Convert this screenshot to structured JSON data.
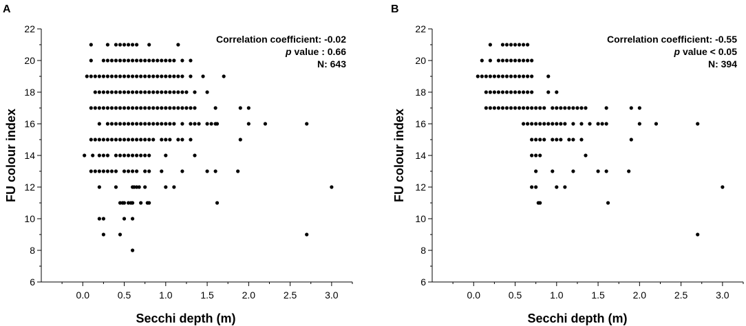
{
  "chart_data": [
    {
      "panel": "A",
      "type": "scatter",
      "xlabel": "Secchi depth (m)",
      "ylabel": "FU colour index",
      "xlim": [
        -0.5,
        3.25
      ],
      "ylim": [
        6,
        22
      ],
      "xticks": [
        "0.0",
        "0.5",
        "1.0",
        "1.5",
        "2.0",
        "2.5",
        "3.0"
      ],
      "xtick_values": [
        0,
        0.5,
        1,
        1.5,
        2,
        2.5,
        3
      ],
      "yticks": [
        "6",
        "8",
        "10",
        "12",
        "14",
        "16",
        "18",
        "20",
        "22"
      ],
      "ytick_values": [
        6,
        8,
        10,
        12,
        14,
        16,
        18,
        20,
        22
      ],
      "annotation": {
        "corr_label": "Correlation coefficient: -0.02",
        "p_prefix": "p",
        "p_rest": " value : 0.66",
        "n_label": "N: 643"
      },
      "series": [
        {
          "y": 21,
          "x": [
            0.1,
            0.3,
            0.4,
            0.45,
            0.5,
            0.55,
            0.6,
            0.65,
            0.8,
            1.15
          ]
        },
        {
          "y": 20,
          "x": [
            0.1,
            0.25,
            0.3,
            0.35,
            0.4,
            0.45,
            0.5,
            0.55,
            0.6,
            0.65,
            0.7,
            0.75,
            0.8,
            0.85,
            0.9,
            0.95,
            1.0,
            1.05,
            1.1,
            1.2,
            1.3
          ]
        },
        {
          "y": 19,
          "x": [
            0.05,
            0.1,
            0.15,
            0.2,
            0.25,
            0.3,
            0.35,
            0.4,
            0.45,
            0.5,
            0.55,
            0.6,
            0.65,
            0.7,
            0.75,
            0.8,
            0.85,
            0.9,
            0.95,
            1.0,
            1.05,
            1.1,
            1.15,
            1.2,
            1.3,
            1.45,
            1.7
          ]
        },
        {
          "y": 18,
          "x": [
            0.15,
            0.2,
            0.25,
            0.3,
            0.35,
            0.4,
            0.45,
            0.5,
            0.55,
            0.6,
            0.65,
            0.7,
            0.75,
            0.8,
            0.85,
            0.9,
            0.95,
            1.0,
            1.05,
            1.1,
            1.15,
            1.2,
            1.25,
            1.35,
            1.5
          ]
        },
        {
          "y": 17,
          "x": [
            0.1,
            0.15,
            0.2,
            0.25,
            0.3,
            0.35,
            0.4,
            0.45,
            0.5,
            0.55,
            0.6,
            0.65,
            0.7,
            0.75,
            0.8,
            0.85,
            0.9,
            0.95,
            1.0,
            1.05,
            1.1,
            1.15,
            1.2,
            1.25,
            1.3,
            1.35,
            1.6,
            1.9,
            2.0
          ]
        },
        {
          "y": 16,
          "x": [
            0.2,
            0.3,
            0.35,
            0.4,
            0.45,
            0.5,
            0.55,
            0.6,
            0.65,
            0.7,
            0.75,
            0.8,
            0.85,
            0.9,
            0.95,
            1.0,
            1.05,
            1.1,
            1.2,
            1.3,
            1.35,
            1.4,
            1.5,
            1.55,
            1.6,
            1.62,
            2.0,
            2.2,
            2.7
          ]
        },
        {
          "y": 15,
          "x": [
            0.1,
            0.15,
            0.2,
            0.25,
            0.3,
            0.35,
            0.4,
            0.45,
            0.5,
            0.55,
            0.6,
            0.65,
            0.7,
            0.75,
            0.8,
            0.85,
            0.95,
            1.0,
            1.05,
            1.15,
            1.2,
            1.3,
            1.9
          ]
        },
        {
          "y": 14,
          "x": [
            0.02,
            0.12,
            0.2,
            0.25,
            0.3,
            0.4,
            0.45,
            0.5,
            0.55,
            0.6,
            0.65,
            0.7,
            0.75,
            0.8,
            1.0,
            1.35
          ]
        },
        {
          "y": 13,
          "x": [
            0.1,
            0.15,
            0.2,
            0.25,
            0.3,
            0.35,
            0.4,
            0.5,
            0.55,
            0.6,
            0.65,
            0.75,
            0.8,
            0.95,
            1.2,
            1.5,
            1.6,
            1.87
          ]
        },
        {
          "y": 12,
          "x": [
            0.2,
            0.4,
            0.6,
            0.62,
            0.65,
            0.68,
            0.75,
            1.0,
            1.1,
            3.0
          ]
        },
        {
          "y": 11,
          "x": [
            0.45,
            0.48,
            0.5,
            0.55,
            0.58,
            0.6,
            0.7,
            0.78,
            0.8,
            1.62
          ]
        },
        {
          "y": 10,
          "x": [
            0.2,
            0.25,
            0.5,
            0.6
          ]
        },
        {
          "y": 9,
          "x": [
            0.25,
            0.45,
            2.7
          ]
        },
        {
          "y": 8,
          "x": [
            0.6
          ]
        }
      ]
    },
    {
      "panel": "B",
      "type": "scatter",
      "xlabel": "Secchi depth (m)",
      "ylabel": "FU colour index",
      "xlim": [
        -0.5,
        3.25
      ],
      "ylim": [
        6,
        22
      ],
      "xticks": [
        "0.0",
        "0.5",
        "1.0",
        "1.5",
        "2.0",
        "2.5",
        "3.0"
      ],
      "xtick_values": [
        0,
        0.5,
        1,
        1.5,
        2,
        2.5,
        3
      ],
      "yticks": [
        "6",
        "8",
        "10",
        "12",
        "14",
        "16",
        "18",
        "20",
        "22"
      ],
      "ytick_values": [
        6,
        8,
        10,
        12,
        14,
        16,
        18,
        20,
        22
      ],
      "annotation": {
        "corr_label": "Correlation coefficient: -0.55",
        "p_prefix": "p",
        "p_rest": " value < 0.05",
        "n_label": "N: 394"
      },
      "series": [
        {
          "y": 21,
          "x": [
            0.2,
            0.35,
            0.4,
            0.45,
            0.5,
            0.55,
            0.6,
            0.65
          ]
        },
        {
          "y": 20,
          "x": [
            0.1,
            0.2,
            0.3,
            0.35,
            0.4,
            0.45,
            0.5,
            0.55,
            0.6,
            0.65,
            0.7
          ]
        },
        {
          "y": 19,
          "x": [
            0.05,
            0.1,
            0.15,
            0.2,
            0.25,
            0.3,
            0.35,
            0.4,
            0.45,
            0.5,
            0.55,
            0.6,
            0.65,
            0.7,
            0.9
          ]
        },
        {
          "y": 18,
          "x": [
            0.15,
            0.2,
            0.25,
            0.3,
            0.35,
            0.4,
            0.45,
            0.5,
            0.55,
            0.6,
            0.65,
            0.7,
            0.9,
            1.0
          ]
        },
        {
          "y": 17,
          "x": [
            0.15,
            0.2,
            0.25,
            0.3,
            0.35,
            0.4,
            0.45,
            0.5,
            0.55,
            0.6,
            0.65,
            0.7,
            0.75,
            0.8,
            0.85,
            0.95,
            1.0,
            1.05,
            1.1,
            1.15,
            1.2,
            1.25,
            1.3,
            1.35,
            1.6,
            1.9,
            2.0
          ]
        },
        {
          "y": 16,
          "x": [
            0.6,
            0.65,
            0.7,
            0.75,
            0.8,
            0.85,
            0.9,
            0.95,
            1.0,
            1.05,
            1.1,
            1.2,
            1.3,
            1.4,
            1.5,
            1.55,
            1.6,
            2.0,
            2.2,
            2.7
          ]
        },
        {
          "y": 15,
          "x": [
            0.7,
            0.75,
            0.8,
            0.85,
            0.95,
            1.0,
            1.05,
            1.15,
            1.2,
            1.3,
            1.9
          ]
        },
        {
          "y": 14,
          "x": [
            0.7,
            0.75,
            0.8,
            1.35
          ]
        },
        {
          "y": 13,
          "x": [
            0.75,
            0.95,
            1.2,
            1.5,
            1.6,
            1.87
          ]
        },
        {
          "y": 12,
          "x": [
            0.7,
            0.75,
            1.0,
            1.1,
            3.0
          ]
        },
        {
          "y": 11,
          "x": [
            0.78,
            0.8,
            1.62
          ]
        },
        {
          "y": 9,
          "x": [
            2.7
          ]
        }
      ]
    }
  ]
}
